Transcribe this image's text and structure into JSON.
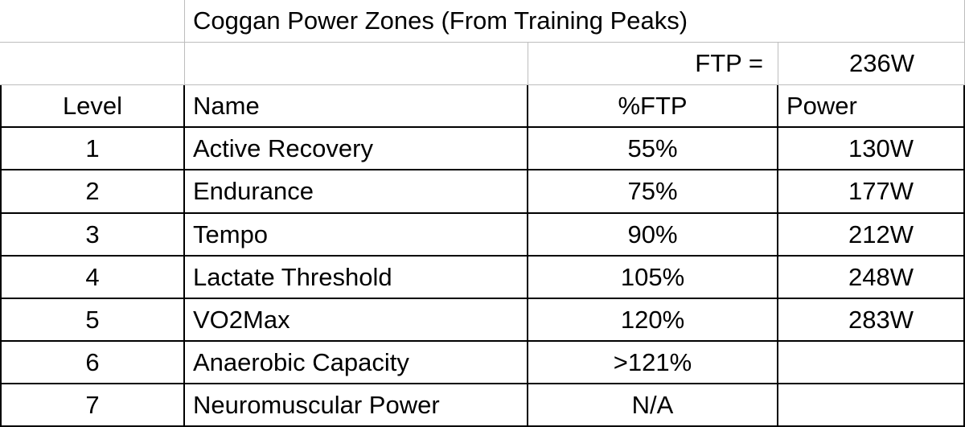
{
  "title": "Coggan Power Zones (From Training Peaks)",
  "ftp": {
    "label": "FTP =",
    "value": "236W"
  },
  "table": {
    "columns": [
      "Level",
      "Name",
      "%FTP",
      "Power"
    ],
    "rows": [
      [
        "1",
        "Active Recovery",
        "55%",
        "130W"
      ],
      [
        "2",
        "Endurance",
        "75%",
        "177W"
      ],
      [
        "3",
        "Tempo",
        "90%",
        "212W"
      ],
      [
        "4",
        "Lactate Threshold",
        "105%",
        "248W"
      ],
      [
        "5",
        "VO2Max",
        "120%",
        "283W"
      ],
      [
        "6",
        "Anaerobic Capacity",
        ">121%"
      ],
      [
        "7",
        "Neuromuscular Power",
        "N/A"
      ]
    ]
  }
}
